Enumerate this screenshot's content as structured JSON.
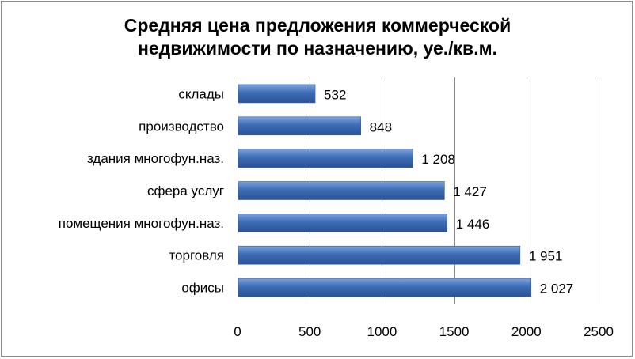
{
  "chart_data": {
    "type": "bar",
    "orientation": "horizontal",
    "title_line1": "Средняя цена предложения коммерческой",
    "title_line2": "недвижимости по назначению, уе./кв.м.",
    "categories": [
      "склады",
      "производство",
      "здания многофун.наз.",
      "сфера услуг",
      "помещения многофун.наз.",
      "торговля",
      "офисы"
    ],
    "values": [
      532,
      848,
      1208,
      1427,
      1446,
      1951,
      2027
    ],
    "value_labels": [
      "532",
      "848",
      "1 208",
      "1 427",
      "1 446",
      "1 951",
      "2 027"
    ],
    "xlim": [
      0,
      2500
    ],
    "xticks": [
      0,
      500,
      1000,
      1500,
      2000,
      2500
    ],
    "xtick_labels": [
      "0",
      "500",
      "1000",
      "1500",
      "2000",
      "2500"
    ],
    "grid": true,
    "bar_color": "#3d6db5"
  }
}
